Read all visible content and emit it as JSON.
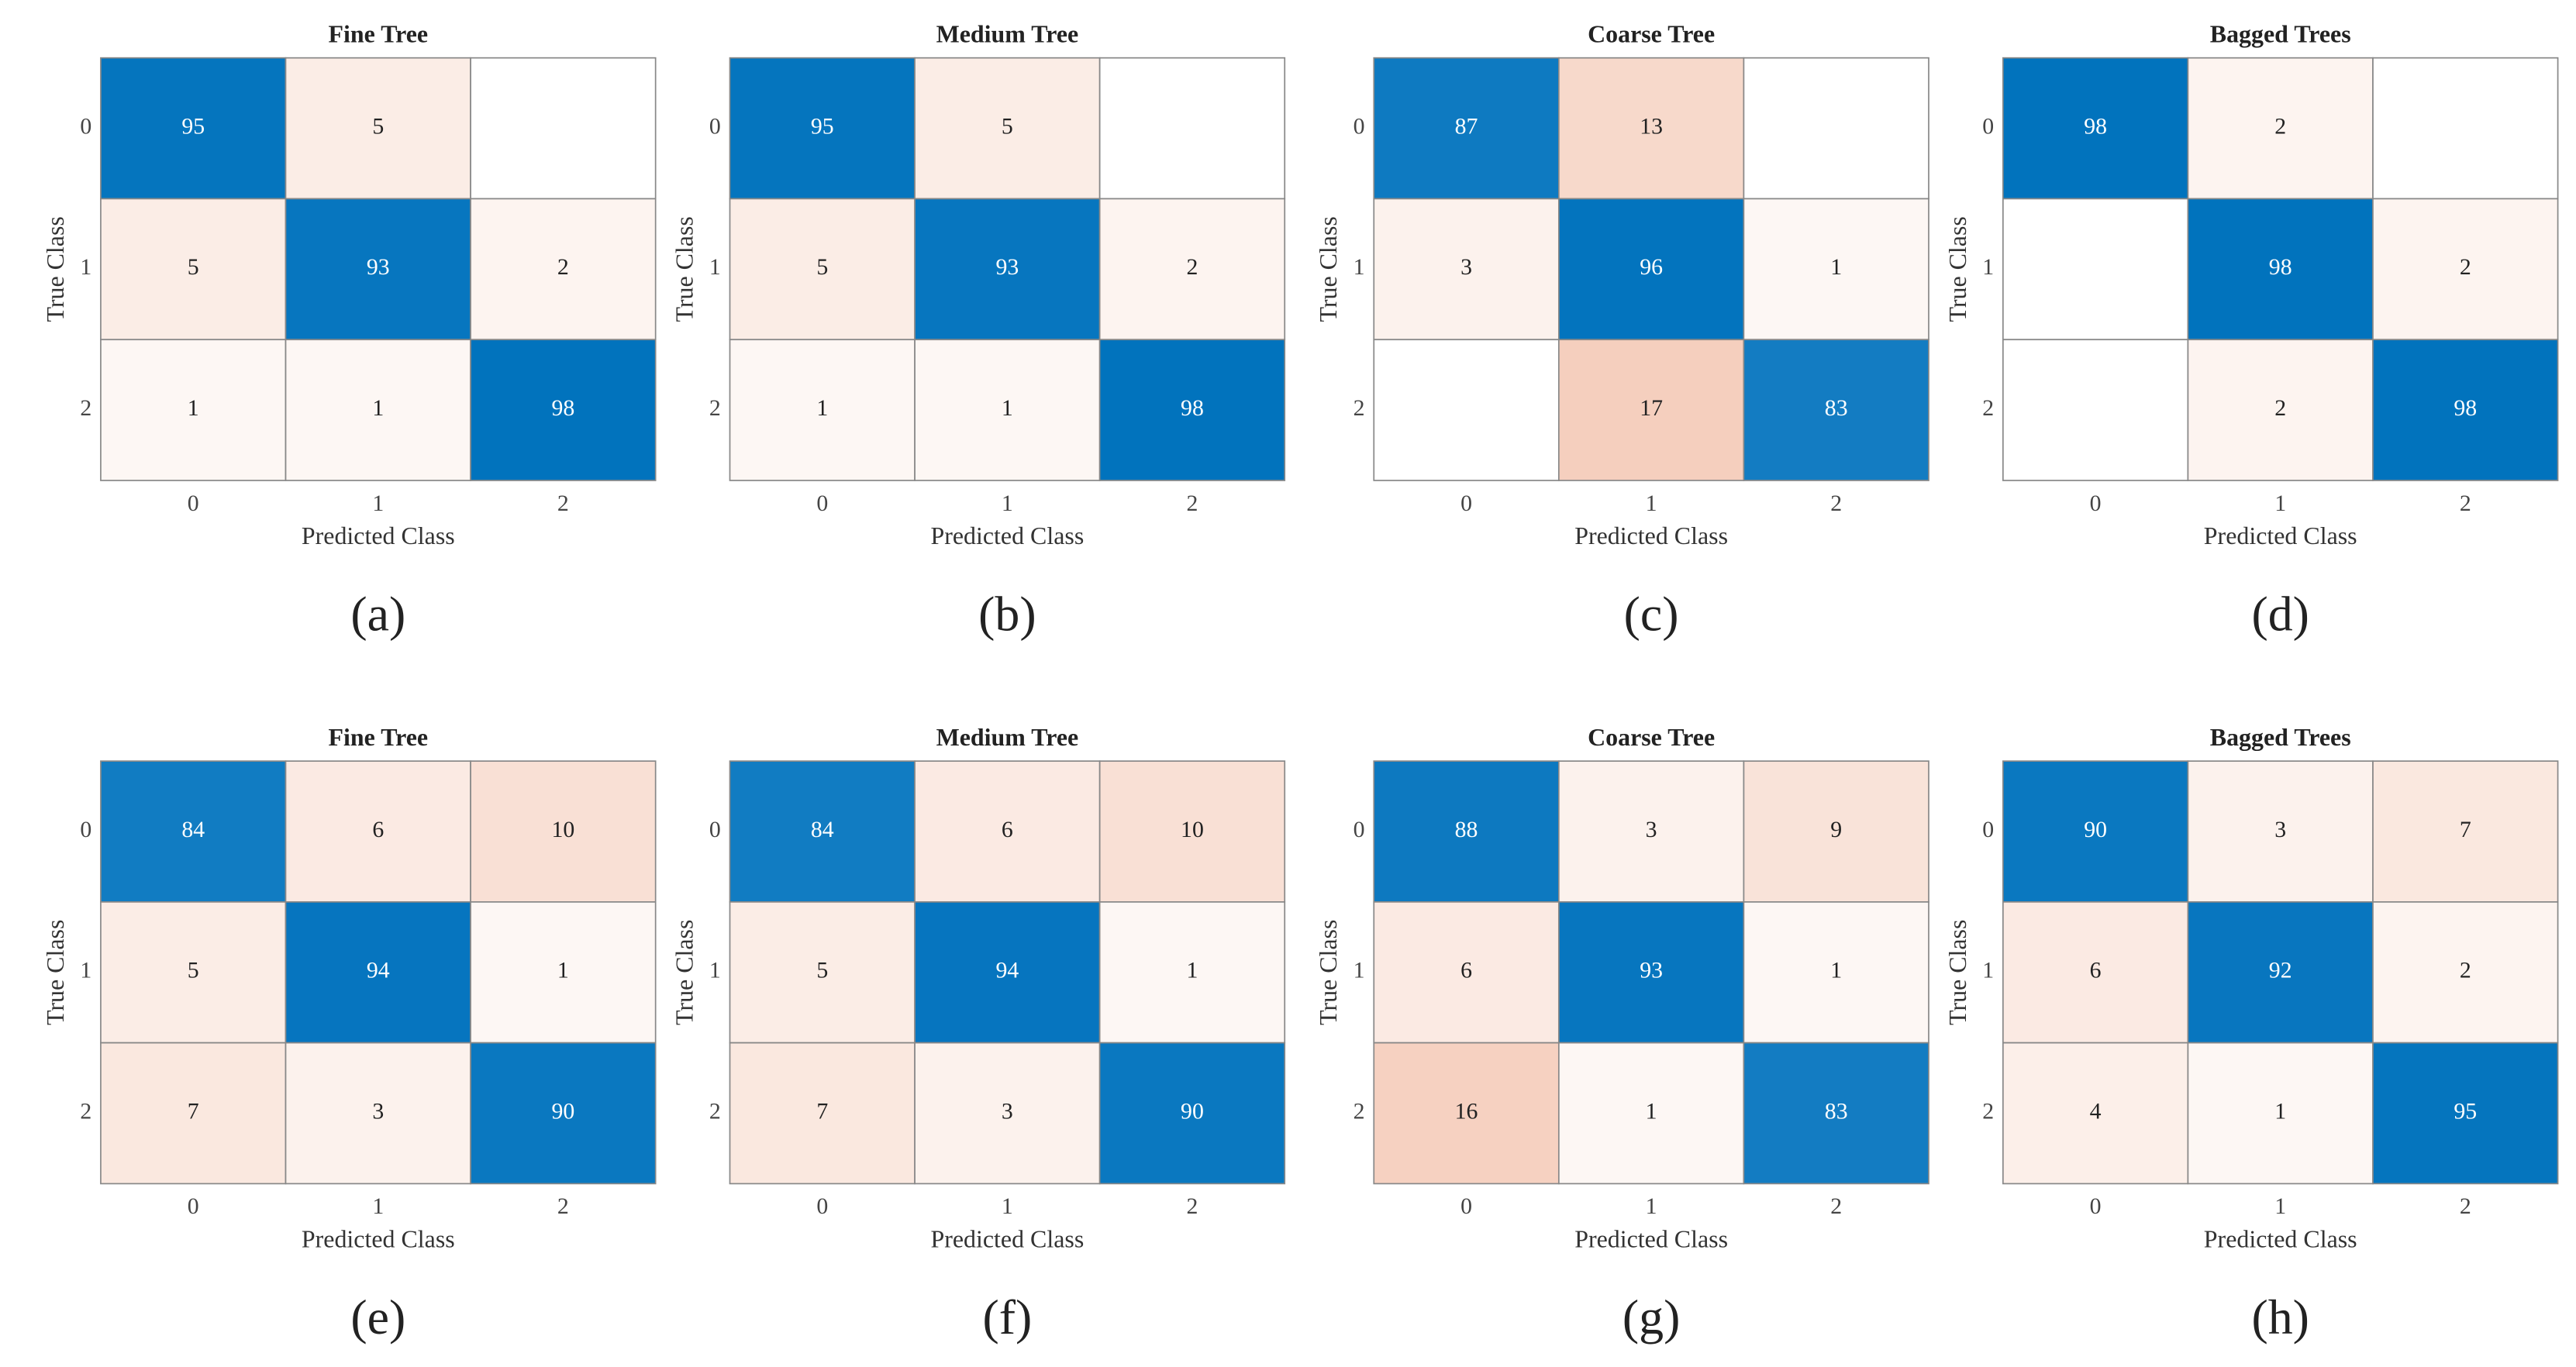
{
  "chart_data": [
    {
      "type": "heatmap",
      "title": "Fine Tree",
      "xlabel": "Predicted Class",
      "ylabel": "True Class",
      "label": "(a)",
      "xcategories": [
        "0",
        "1",
        "2"
      ],
      "ycategories": [
        "0",
        "1",
        "2"
      ],
      "values": [
        [
          95,
          5,
          null
        ],
        [
          5,
          93,
          2
        ],
        [
          1,
          1,
          98
        ]
      ],
      "diagonal_color": "#0072bd",
      "off_diagonal_color": "#f0b49a"
    },
    {
      "type": "heatmap",
      "title": "Medium Tree",
      "xlabel": "Predicted Class",
      "ylabel": "True Class",
      "label": "(b)",
      "xcategories": [
        "0",
        "1",
        "2"
      ],
      "ycategories": [
        "0",
        "1",
        "2"
      ],
      "values": [
        [
          95,
          5,
          null
        ],
        [
          5,
          93,
          2
        ],
        [
          1,
          1,
          98
        ]
      ],
      "diagonal_color": "#0072bd",
      "off_diagonal_color": "#f0b49a"
    },
    {
      "type": "heatmap",
      "title": "Coarse Tree",
      "xlabel": "Predicted Class",
      "ylabel": "True Class",
      "label": "(c)",
      "xcategories": [
        "0",
        "1",
        "2"
      ],
      "ycategories": [
        "0",
        "1",
        "2"
      ],
      "values": [
        [
          87,
          13,
          null
        ],
        [
          3,
          96,
          1
        ],
        [
          null,
          17,
          83
        ]
      ],
      "diagonal_color": "#0072bd",
      "off_diagonal_color": "#f0b49a"
    },
    {
      "type": "heatmap",
      "title": "Bagged Trees",
      "xlabel": "Predicted Class",
      "ylabel": "True Class",
      "label": "(d)",
      "xcategories": [
        "0",
        "1",
        "2"
      ],
      "ycategories": [
        "0",
        "1",
        "2"
      ],
      "values": [
        [
          98,
          2,
          null
        ],
        [
          null,
          98,
          2
        ],
        [
          null,
          2,
          98
        ]
      ],
      "diagonal_color": "#0072bd",
      "off_diagonal_color": "#f0b49a"
    },
    {
      "type": "heatmap",
      "title": "Fine Tree",
      "xlabel": "Predicted Class",
      "ylabel": "True Class",
      "label": "(e)",
      "xcategories": [
        "0",
        "1",
        "2"
      ],
      "ycategories": [
        "0",
        "1",
        "2"
      ],
      "values": [
        [
          84,
          6,
          10
        ],
        [
          5,
          94,
          1
        ],
        [
          7,
          3,
          90
        ]
      ],
      "diagonal_color": "#0072bd",
      "off_diagonal_color": "#f0b49a"
    },
    {
      "type": "heatmap",
      "title": "Medium Tree",
      "xlabel": "Predicted Class",
      "ylabel": "True Class",
      "label": "(f)",
      "xcategories": [
        "0",
        "1",
        "2"
      ],
      "ycategories": [
        "0",
        "1",
        "2"
      ],
      "values": [
        [
          84,
          6,
          10
        ],
        [
          5,
          94,
          1
        ],
        [
          7,
          3,
          90
        ]
      ],
      "diagonal_color": "#0072bd",
      "off_diagonal_color": "#f0b49a"
    },
    {
      "type": "heatmap",
      "title": "Coarse Tree",
      "xlabel": "Predicted Class",
      "ylabel": "True Class",
      "label": "(g)",
      "xcategories": [
        "0",
        "1",
        "2"
      ],
      "ycategories": [
        "0",
        "1",
        "2"
      ],
      "values": [
        [
          88,
          3,
          9
        ],
        [
          6,
          93,
          1
        ],
        [
          16,
          1,
          83
        ]
      ],
      "diagonal_color": "#0072bd",
      "off_diagonal_color": "#f0b49a"
    },
    {
      "type": "heatmap",
      "title": "Bagged Trees",
      "xlabel": "Predicted Class",
      "ylabel": "True Class",
      "label": "(h)",
      "xcategories": [
        "0",
        "1",
        "2"
      ],
      "ycategories": [
        "0",
        "1",
        "2"
      ],
      "values": [
        [
          90,
          3,
          7
        ],
        [
          6,
          92,
          2
        ],
        [
          4,
          1,
          95
        ]
      ],
      "diagonal_color": "#0072bd",
      "off_diagonal_color": "#f0b49a"
    }
  ]
}
